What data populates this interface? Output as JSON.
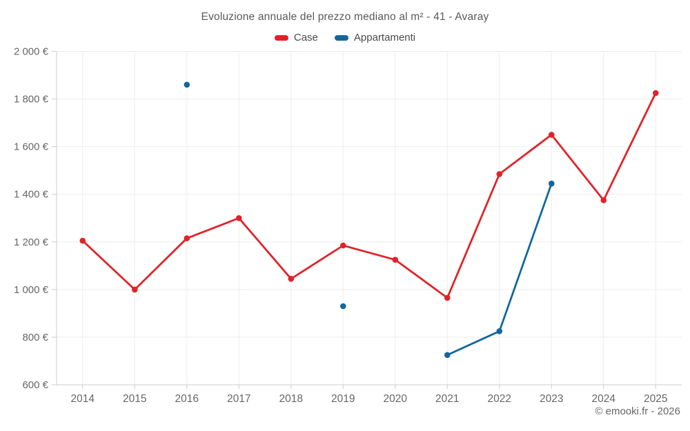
{
  "title": "Evoluzione annuale del prezzo mediano al m² - 41 - Avaray",
  "footer_credit": "© emooki.fr - 2026",
  "colors": {
    "case_red": "#e02328",
    "appartamenti_blue": "#14669e",
    "grid": "#ededed",
    "axis": "#cccccc",
    "tick_text": "#666666"
  },
  "chart_data": {
    "type": "line",
    "title": "Evoluzione annuale del prezzo mediano al m² - 41 - Avaray",
    "categories": [
      "2014",
      "2015",
      "2016",
      "2017",
      "2018",
      "2019",
      "2020",
      "2021",
      "2022",
      "2023",
      "2024",
      "2025"
    ],
    "series": [
      {
        "name": "Case",
        "color": "#e02328",
        "values": [
          1205,
          1000,
          1215,
          1300,
          1045,
          1185,
          1125,
          965,
          1485,
          1650,
          1375,
          1825
        ]
      },
      {
        "name": "Appartamenti",
        "color": "#14669e",
        "values": [
          null,
          null,
          1860,
          null,
          null,
          930,
          null,
          725,
          825,
          1445,
          null,
          null
        ]
      }
    ],
    "ylim": [
      600,
      2000
    ],
    "ytick_step": 200,
    "ytick_labels": [
      "600 €",
      "800 €",
      "1 000 €",
      "1 200 €",
      "1 400 €",
      "1 600 €",
      "1 800 €",
      "2 000 €"
    ],
    "xlabel": "",
    "ylabel": "",
    "grid": true,
    "legend_position": "top",
    "legend_entries": [
      "Case",
      "Appartamenti"
    ]
  }
}
